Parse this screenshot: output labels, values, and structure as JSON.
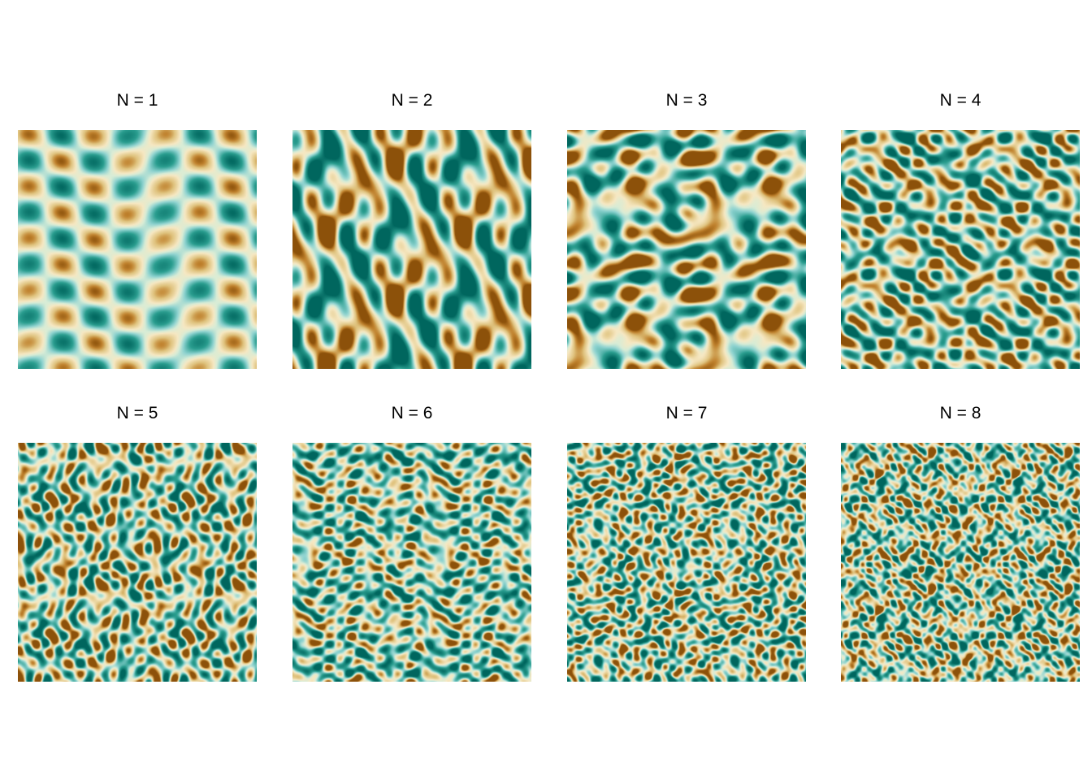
{
  "panels": [
    {
      "title": "N = 1",
      "order": 1
    },
    {
      "title": "N = 2",
      "order": 2
    },
    {
      "title": "N = 3",
      "order": 3
    },
    {
      "title": "N = 4",
      "order": 4
    },
    {
      "title": "N = 5",
      "order": 5
    },
    {
      "title": "N = 6",
      "order": 6
    },
    {
      "title": "N = 7",
      "order": 7
    },
    {
      "title": "N = 8",
      "order": 8
    }
  ],
  "colors": {
    "background": "#ffffff",
    "palette": [
      "#00665e",
      "#2a9d8f",
      "#8fd3d0",
      "#c7eae5",
      "#f6e8c3",
      "#dfc27d",
      "#bf812d",
      "#8c510a"
    ]
  }
}
